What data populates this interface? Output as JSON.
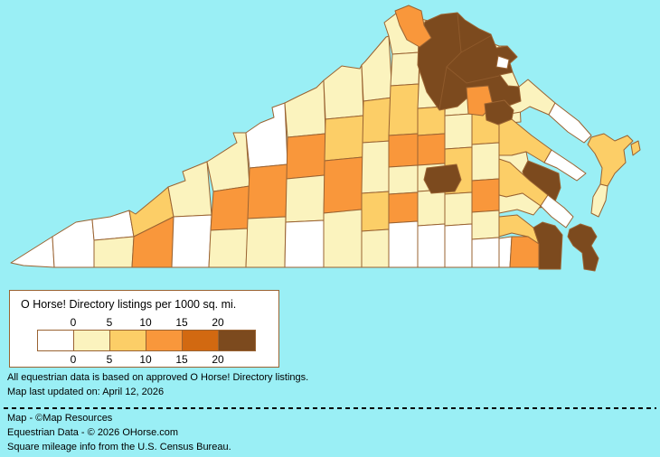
{
  "page": {
    "background_color": "#9AEFF5"
  },
  "legend": {
    "title": "O Horse! Directory listings per 1000 sq. mi.",
    "tick_labels": [
      "0",
      "5",
      "10",
      "15",
      "20"
    ],
    "colors": [
      "#FFFFFF",
      "#FBF3BE",
      "#FCCE67",
      "#F9973B",
      "#D26911",
      "#7C4A1E"
    ],
    "box_border_color": "#9A6332"
  },
  "notes": {
    "line1": "All equestrian data is based on approved O Horse! Directory listings.",
    "line2": "Map last updated on: April 12, 2026"
  },
  "credits": {
    "line1": "Map - ©Map Resources",
    "line2": "Equestrian Data - © 2026 OHorse.com",
    "line3": "Square mileage info from the U.S. Census Bureau."
  },
  "map": {
    "water_color": "#9AEFF5",
    "county_border_color": "#9A6332",
    "class_colors": [
      "#FFFFFF",
      "#FBF3BE",
      "#FCCE67",
      "#F9973B",
      "#D26911",
      "#7C4A1E"
    ],
    "counties": {
      "c01": 0,
      "c02": 0,
      "c03": 0,
      "c04": 1,
      "c05": 2,
      "c06": 3,
      "c07": 1,
      "c08": 0,
      "c09": 1,
      "c10": 3,
      "c11": 1,
      "c12": 0,
      "c13": 3,
      "c14": 1,
      "c15": 1,
      "c16": 3,
      "c17": 1,
      "c18": 0,
      "c19": 1,
      "c20": 2,
      "c21": 3,
      "c22": 1,
      "c23": 1,
      "c24": 2,
      "c25": 1,
      "c26": 2,
      "c27": 1,
      "c28": 1,
      "c29": 1,
      "c30": 2,
      "c31": 3,
      "c32": 1,
      "c33": 3,
      "c34": 0,
      "c35": 1,
      "c36": 1,
      "c37": 2,
      "c38": 3,
      "c39": 1,
      "c40": 1,
      "c41": 0,
      "c42": 1,
      "c43": 1,
      "c44": 1,
      "c45": 2,
      "c46": 1,
      "c47": 0,
      "c48": 1,
      "c49": 1,
      "c50": 2,
      "c51": 1,
      "c52": 3,
      "c53": 1,
      "c54": 0,
      "c55": 1,
      "c56": 1,
      "nn1": 1,
      "nn2": 0,
      "mp_base": 2,
      "mp_tip": 0,
      "mp_fill": 1,
      "gloucester": 5,
      "newkent": 2,
      "peninsula_tip": 0,
      "charlescity": 1,
      "surry": 2,
      "suffolk": 3,
      "southampton": 0,
      "chesapeake": 5,
      "virginia_beach": 5,
      "accomack": 2,
      "northampton": 1,
      "bay_island": 2,
      "nova": 5,
      "arlington": 0,
      "frederick": 3,
      "stafford": 3,
      "fredericksburg": 5,
      "goochland": 5
    }
  }
}
